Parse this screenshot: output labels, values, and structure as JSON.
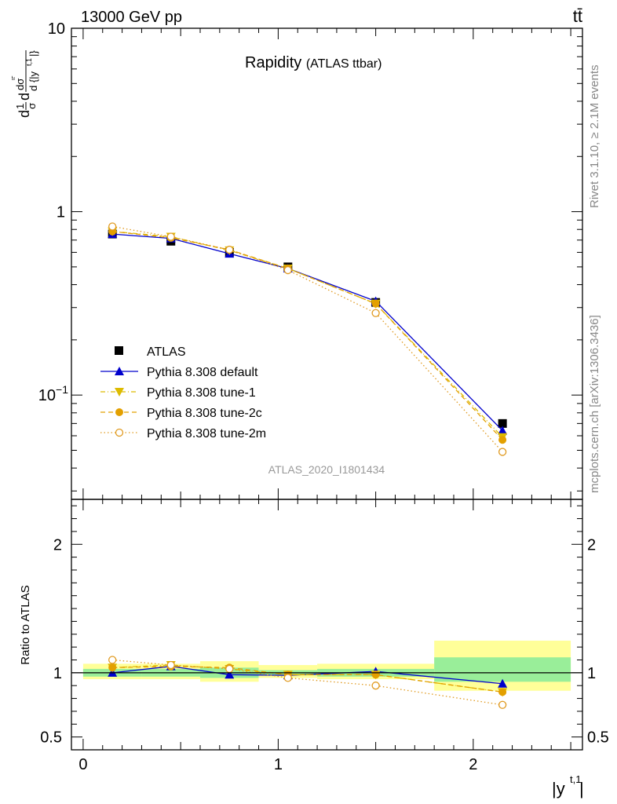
{
  "header": {
    "energy_label": "13000 GeV pp",
    "process_label": "tt̄",
    "rivet_label": "Rivet 3.1.10, ≥ 2.1M events",
    "mcplots_label": "mcplots.cern.ch [arXiv:1306.3436]"
  },
  "chart_data": [
    {
      "type": "line",
      "title": "Rapidity",
      "subtitle": "(ATLAS ttbar)",
      "watermark": "ATLAS_2020_I1801434",
      "ylabel": "1/σ dσ/d|y^{t,1}|",
      "yscale": "log",
      "ylim": [
        0.027,
        10
      ],
      "xlim": [
        -0.06,
        2.56
      ],
      "y_ticks": [
        {
          "value": 0.1,
          "base": "10",
          "exp": "−1"
        },
        {
          "value": 1,
          "base": "1",
          "exp": ""
        },
        {
          "value": 10,
          "base": "10",
          "exp": ""
        }
      ],
      "legend_position": "middle-left",
      "x": [
        0.15,
        0.45,
        0.75,
        1.05,
        1.5,
        2.15
      ],
      "x_bins": [
        [
          0.0,
          0.3
        ],
        [
          0.3,
          0.6
        ],
        [
          0.6,
          0.9
        ],
        [
          0.9,
          1.2
        ],
        [
          1.2,
          1.8
        ],
        [
          1.8,
          2.5
        ]
      ],
      "series": [
        {
          "name": "ATLAS",
          "color": "#000000",
          "marker": "square",
          "style": "none",
          "values": [
            0.755,
            0.69,
            0.6,
            0.5,
            0.32,
            0.07
          ]
        },
        {
          "name": "Pythia 8.308 default",
          "color": "#0000cc",
          "marker": "triangle-up",
          "style": "solid",
          "values": [
            0.755,
            0.715,
            0.59,
            0.49,
            0.325,
            0.064
          ]
        },
        {
          "name": "Pythia 8.308 tune-1",
          "color": "#ddbb00",
          "marker": "triangle-down",
          "style": "dashdot",
          "values": [
            0.78,
            0.73,
            0.615,
            0.49,
            0.315,
            0.059
          ]
        },
        {
          "name": "Pythia 8.308 tune-2c",
          "color": "#e3a000",
          "marker": "circle",
          "style": "dashed",
          "values": [
            0.78,
            0.72,
            0.62,
            0.49,
            0.315,
            0.057
          ]
        },
        {
          "name": "Pythia 8.308 tune-2m",
          "color": "#e09a20",
          "marker": "circle-open",
          "style": "dotted",
          "values": [
            0.83,
            0.73,
            0.62,
            0.48,
            0.28,
            0.049
          ]
        }
      ]
    },
    {
      "type": "line",
      "ylabel": "Ratio to ATLAS",
      "xlabel": "|y^{t,1}|",
      "ylim": [
        0.4,
        2.35
      ],
      "xlim": [
        -0.06,
        2.56
      ],
      "y_ticks": [
        0.5,
        1,
        2
      ],
      "x_ticks": [
        0,
        1,
        2
      ],
      "reference_line": 1,
      "x": [
        0.15,
        0.45,
        0.75,
        1.05,
        1.5,
        2.15
      ],
      "x_bins": [
        [
          0.0,
          0.3
        ],
        [
          0.3,
          0.6
        ],
        [
          0.6,
          0.9
        ],
        [
          0.9,
          1.2
        ],
        [
          1.2,
          1.8
        ],
        [
          1.8,
          2.5
        ]
      ],
      "bands": {
        "inner_color": "#99ee99",
        "outer_color": "#ffff99",
        "inner": [
          [
            0.97,
            1.03
          ],
          [
            0.97,
            1.03
          ],
          [
            0.96,
            1.04
          ],
          [
            0.98,
            1.02
          ],
          [
            0.97,
            1.03
          ],
          [
            0.93,
            1.12
          ]
        ],
        "outer": [
          [
            0.95,
            1.07
          ],
          [
            0.95,
            1.07
          ],
          [
            0.93,
            1.09
          ],
          [
            0.96,
            1.06
          ],
          [
            0.95,
            1.07
          ],
          [
            0.86,
            1.25
          ]
        ]
      },
      "series": [
        {
          "name": "Pythia 8.308 default",
          "color": "#0000cc",
          "marker": "triangle-up",
          "style": "solid",
          "values": [
            1.0,
            1.05,
            0.985,
            0.98,
            1.01,
            0.915
          ]
        },
        {
          "name": "Pythia 8.308 tune-1",
          "color": "#ddbb00",
          "marker": "triangle-down",
          "style": "dashdot",
          "values": [
            1.04,
            1.06,
            1.03,
            0.985,
            0.985,
            0.85
          ]
        },
        {
          "name": "Pythia 8.308 tune-2c",
          "color": "#e3a000",
          "marker": "circle",
          "style": "dashed",
          "values": [
            1.04,
            1.05,
            1.04,
            0.985,
            0.985,
            0.85
          ]
        },
        {
          "name": "Pythia 8.308 tune-2m",
          "color": "#e09a20",
          "marker": "circle-open",
          "style": "dotted",
          "values": [
            1.1,
            1.06,
            1.03,
            0.96,
            0.9,
            0.75
          ]
        }
      ]
    }
  ]
}
